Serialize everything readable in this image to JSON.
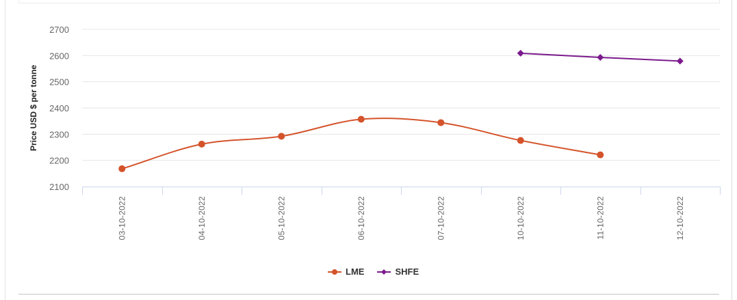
{
  "chart_data": {
    "type": "line",
    "title": "",
    "xlabel": "",
    "ylabel": "Price USD $ per tonne",
    "ylim": [
      2100,
      2700
    ],
    "yticks": [
      "2100",
      "2200",
      "2300",
      "2400",
      "2500",
      "2600",
      "2700"
    ],
    "categories": [
      "03-10-2022",
      "04-10-2022",
      "05-10-2022",
      "06-10-2022",
      "07-10-2022",
      "10-10-2022",
      "11-10-2022",
      "12-10-2022"
    ],
    "series": [
      {
        "name": "LME",
        "color": "#d4532a",
        "marker": "circle",
        "values": [
          2168,
          2262,
          2292,
          2357,
          2344,
          2276,
          2221,
          null
        ]
      },
      {
        "name": "SHFE",
        "color": "#7b1a8c",
        "marker": "diamond",
        "values": [
          null,
          null,
          null,
          null,
          null,
          2609,
          2593,
          2579
        ]
      }
    ],
    "grid": true,
    "legend_position": "bottom"
  },
  "legend": {
    "lme": "LME",
    "shfe": "SHFE"
  }
}
